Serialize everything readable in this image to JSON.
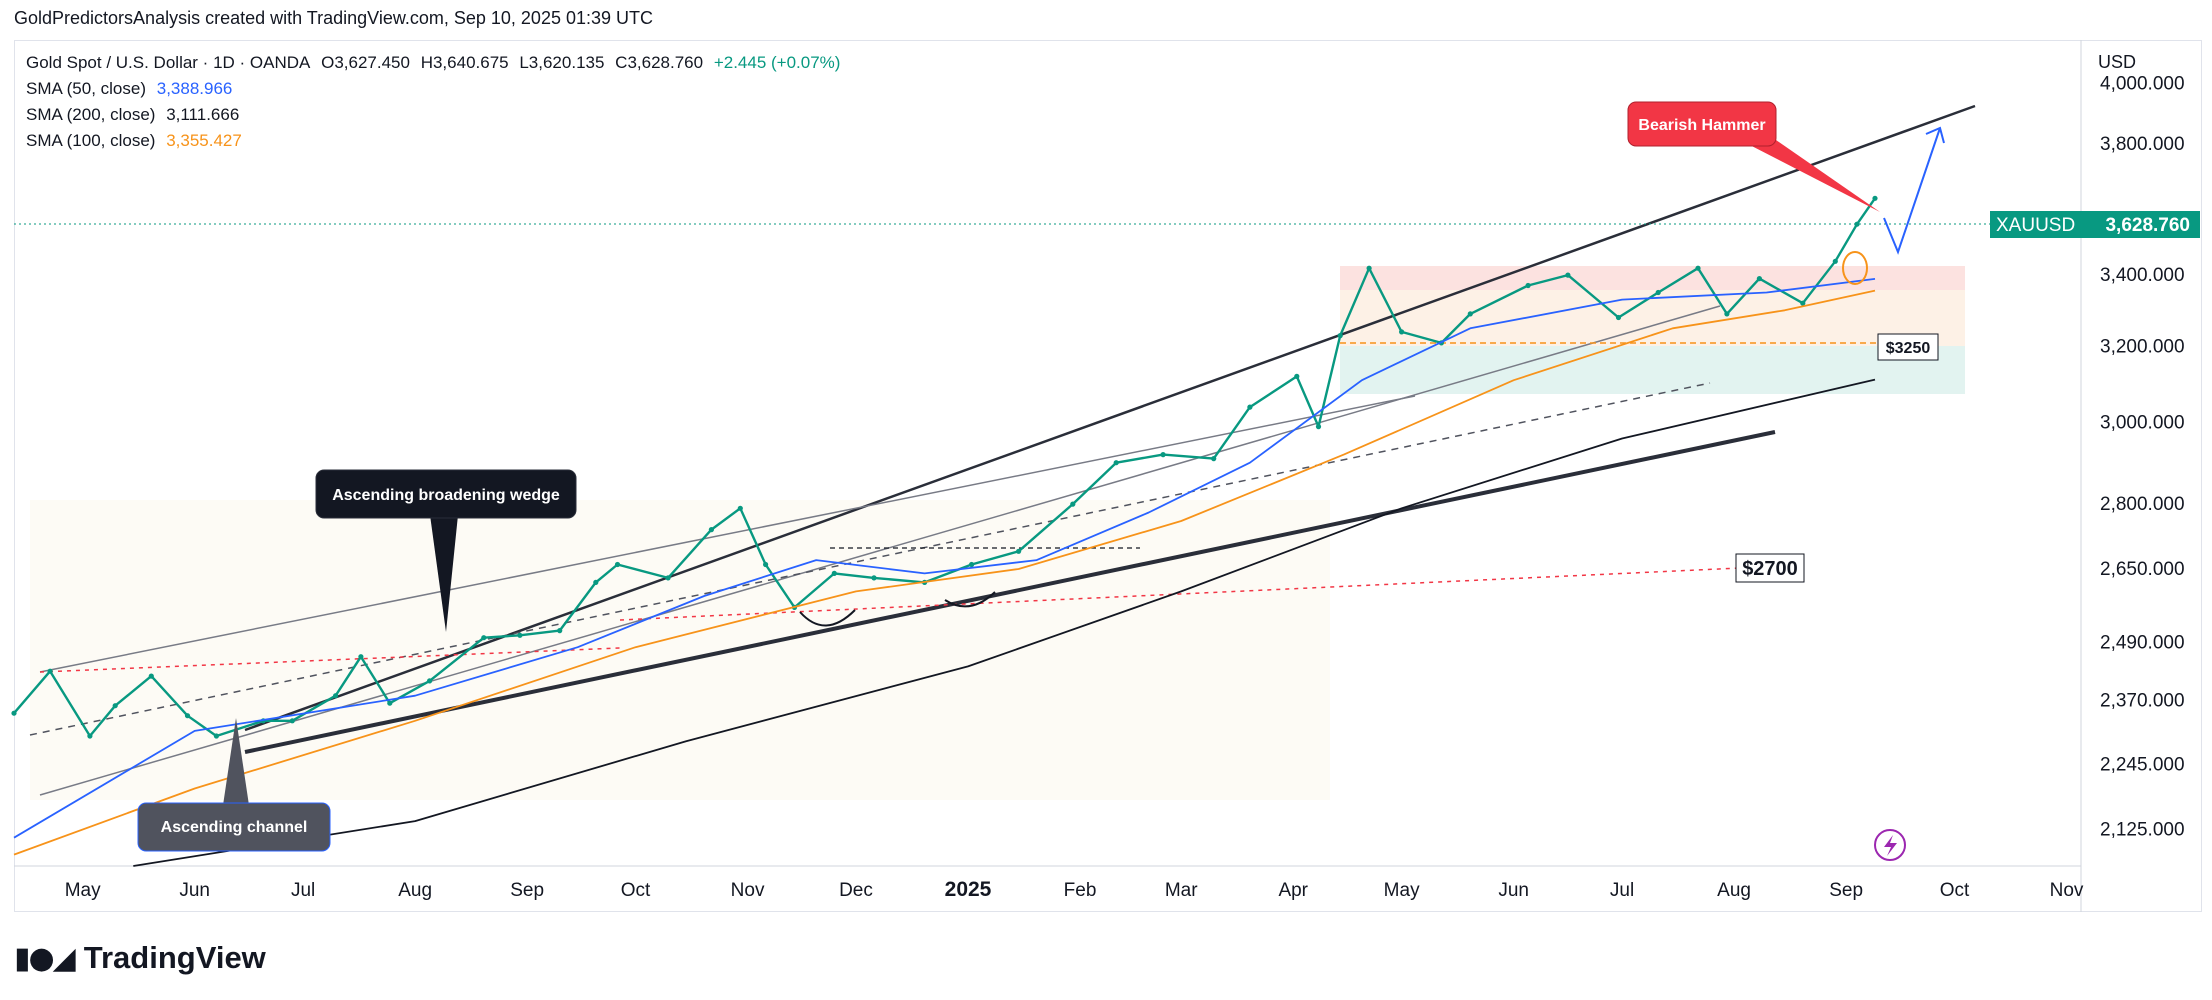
{
  "header": {
    "attribution": "GoldPredictorsAnalysis created with TradingView.com, Sep 10, 2025 01:39 UTC"
  },
  "legend": {
    "symbol_title": "Gold Spot / U.S. Dollar · 1D · OANDA",
    "open": "O3,627.450",
    "high": "H3,640.675",
    "low": "L3,620.135",
    "close": "C3,628.760",
    "change": "+2.445 (+0.07%)",
    "indicators": [
      {
        "label": "SMA (50, close)",
        "value": "3,388.966",
        "color": "#2962ff"
      },
      {
        "label": "SMA (200, close)",
        "value": "3,111.666",
        "color": "#131722"
      },
      {
        "label": "SMA (100, close)",
        "value": "3,355.427",
        "color": "#f7931a"
      }
    ]
  },
  "price_axis": {
    "currency": "USD",
    "last_symbol": "XAUUSD",
    "last_price": "3,628.760",
    "last_price_value": 3628.76
  },
  "footer": {
    "brand": "TradingView",
    "logo_icon": "tradingview-logo-icon"
  },
  "annotations": {
    "bearish_hammer": "Bearish Hammer",
    "broadening_wedge": "Ascending broadening wedge",
    "ascending_channel": "Ascending channel",
    "level_3250": "$3250",
    "level_2700": "$2700"
  },
  "chart_data": {
    "type": "line",
    "symbol": "XAUUSD",
    "title": "Gold Spot / U.S. Dollar",
    "timeframe": "1D",
    "xlabel": "",
    "ylabel": "",
    "scale": "log",
    "y_ticks": [
      2125,
      2245,
      2370,
      2490,
      2650,
      2800,
      3000,
      3200,
      3400,
      3800,
      4000
    ],
    "y_tick_labels": [
      "2,125.000",
      "2,245.000",
      "2,370.000",
      "2,490.000",
      "2,650.000",
      "2,800.000",
      "3,000.000",
      "3,200.000",
      "3,400.000",
      "3,800.000",
      "4,000.000"
    ],
    "x_tick_labels": [
      "May",
      "Jun",
      "Jul",
      "Aug",
      "Sep",
      "Oct",
      "Nov",
      "Dec",
      "2025",
      "Feb",
      "Mar",
      "Apr",
      "May",
      "Jun",
      "Jul",
      "Aug",
      "Sep",
      "Oct",
      "Nov"
    ],
    "x_tick_dates": [
      "2024-05-01",
      "2024-06-01",
      "2024-07-01",
      "2024-08-01",
      "2024-09-01",
      "2024-10-01",
      "2024-11-01",
      "2024-12-01",
      "2025-01-01",
      "2025-02-01",
      "2025-03-01",
      "2025-04-01",
      "2025-05-01",
      "2025-06-01",
      "2025-07-01",
      "2025-08-01",
      "2025-09-01",
      "2025-10-01",
      "2025-11-01"
    ],
    "x_range": [
      "2024-04-12",
      "2025-11-05"
    ],
    "ylim": [
      2060,
      4150
    ],
    "grid": false,
    "series": [
      {
        "name": "XAUUSD",
        "style": "line",
        "x": [
          "2024-04-12",
          "2024-04-22",
          "2024-05-03",
          "2024-05-10",
          "2024-05-20",
          "2024-05-30",
          "2024-06-07",
          "2024-06-20",
          "2024-06-28",
          "2024-07-10",
          "2024-07-17",
          "2024-07-25",
          "2024-08-05",
          "2024-08-20",
          "2024-08-30",
          "2024-09-10",
          "2024-09-20",
          "2024-09-26",
          "2024-10-10",
          "2024-10-22",
          "2024-10-30",
          "2024-11-06",
          "2024-11-14",
          "2024-11-25",
          "2024-12-06",
          "2024-12-20",
          "2025-01-02",
          "2025-01-15",
          "2025-01-30",
          "2025-02-11",
          "2025-02-24",
          "2025-03-10",
          "2025-03-20",
          "2025-04-02",
          "2025-04-08",
          "2025-04-14",
          "2025-04-22",
          "2025-05-01",
          "2025-05-12",
          "2025-05-20",
          "2025-06-05",
          "2025-06-16",
          "2025-06-30",
          "2025-07-11",
          "2025-07-22",
          "2025-07-30",
          "2025-08-08",
          "2025-08-20",
          "2025-08-29",
          "2025-09-04",
          "2025-09-09"
        ],
        "y": [
          2345,
          2430,
          2300,
          2360,
          2420,
          2340,
          2300,
          2330,
          2330,
          2380,
          2460,
          2365,
          2410,
          2500,
          2505,
          2515,
          2620,
          2660,
          2630,
          2740,
          2790,
          2660,
          2565,
          2640,
          2630,
          2620,
          2660,
          2690,
          2800,
          2900,
          2920,
          2910,
          3040,
          3120,
          2990,
          3230,
          3420,
          3240,
          3210,
          3290,
          3370,
          3400,
          3280,
          3350,
          3420,
          3290,
          3390,
          3320,
          3440,
          3550,
          3628.76
        ]
      },
      {
        "name": "SMA (50, close)",
        "color": "#2962ff",
        "x": [
          "2024-04-12",
          "2024-06-01",
          "2024-08-01",
          "2024-09-15",
          "2024-10-20",
          "2024-11-20",
          "2024-12-20",
          "2025-01-20",
          "2025-02-20",
          "2025-03-20",
          "2025-04-20",
          "2025-05-20",
          "2025-07-01",
          "2025-08-10",
          "2025-09-09"
        ],
        "y": [
          2110,
          2310,
          2380,
          2480,
          2590,
          2670,
          2640,
          2670,
          2780,
          2900,
          3110,
          3250,
          3330,
          3350,
          3388.966
        ]
      },
      {
        "name": "SMA (100, close)",
        "color": "#f7931a",
        "x": [
          "2024-04-12",
          "2024-06-01",
          "2024-08-01",
          "2024-10-01",
          "2024-12-01",
          "2025-01-15",
          "2025-03-01",
          "2025-04-15",
          "2025-06-01",
          "2025-07-15",
          "2025-08-15",
          "2025-09-09"
        ],
        "y": [
          2080,
          2200,
          2330,
          2480,
          2600,
          2650,
          2760,
          2920,
          3110,
          3250,
          3300,
          3355.427
        ]
      },
      {
        "name": "SMA (200, close)",
        "color": "#131722",
        "x": [
          "2024-05-15",
          "2024-08-01",
          "2024-10-15",
          "2025-01-01",
          "2025-03-01",
          "2025-05-01",
          "2025-07-01",
          "2025-09-09"
        ],
        "y": [
          2060,
          2140,
          2290,
          2440,
          2600,
          2790,
          2960,
          3111.666
        ]
      }
    ],
    "levels": [
      {
        "label": "$3250",
        "value": 3250
      },
      {
        "label": "$2700",
        "value": 2700
      }
    ],
    "annotations": [
      "Bearish Hammer",
      "Ascending broadening wedge",
      "Ascending channel"
    ]
  }
}
